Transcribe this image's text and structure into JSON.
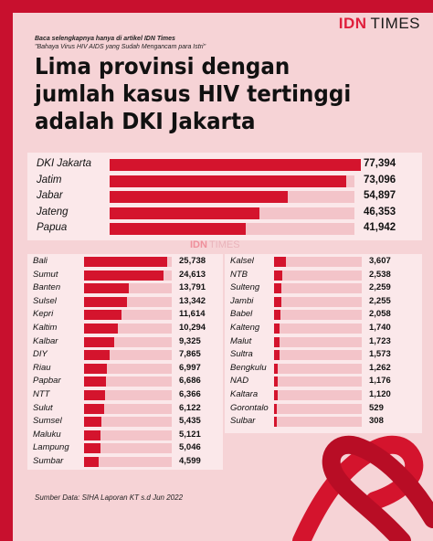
{
  "header": {
    "logo_main": "IDN",
    "logo_secondary": "TIMES",
    "note_line1": "Baca selengkapnya hanya di artikel IDN Times",
    "note_line2": "\"Bahaya Virus HIV AIDS yang Sudah Mengancam para Istri\"",
    "title_line1": "Lima provinsi dengan",
    "title_line2": "jumlah kasus HIV tertinggi",
    "title_line3": "adalah DKI Jakarta"
  },
  "watermark": {
    "main": "IDN",
    "secondary": "TIMES"
  },
  "footer": {
    "source": "Sumber Data: SIHA Laporan KT s.d Jun 2022"
  },
  "colors": {
    "bar": "#d4142d",
    "track": "#f3c4c9",
    "background": "#f6d3d6",
    "accent": "#c8102e"
  },
  "chart_data": [
    {
      "type": "bar",
      "orientation": "horizontal",
      "categories": [
        "DKI Jakarta",
        "Jatim",
        "Jabar",
        "Jateng",
        "Papua"
      ],
      "values": [
        77394,
        73096,
        54897,
        46353,
        41942
      ],
      "labels": [
        "77,394",
        "73,096",
        "54,897",
        "46,353",
        "41,942"
      ],
      "xlim": [
        0,
        93000
      ],
      "grid": false
    },
    {
      "type": "bar",
      "orientation": "horizontal",
      "categories": [
        "Bali",
        "Sumut",
        "Banten",
        "Sulsel",
        "Kepri",
        "Kaltim",
        "Kalbar",
        "DIY",
        "Riau",
        "Papbar",
        "NTT",
        "Sulut",
        "Sumsel",
        "Maluku",
        "Lampung",
        "Sumbar"
      ],
      "values": [
        25738,
        24613,
        13791,
        13342,
        11614,
        10294,
        9325,
        7865,
        6997,
        6686,
        6366,
        6122,
        5435,
        5121,
        5046,
        4599
      ],
      "labels": [
        "25,738",
        "24,613",
        "13,791",
        "13,342",
        "11,614",
        "10,294",
        "9,325",
        "7,865",
        "6,997",
        "6,686",
        "6,366",
        "6,122",
        "5,435",
        "5,121",
        "5,046",
        "4,599"
      ],
      "xlim": [
        0,
        93000
      ],
      "grid": false
    },
    {
      "type": "bar",
      "orientation": "horizontal",
      "categories": [
        "Kalsel",
        "NTB",
        "Sulteng",
        "Jambi",
        "Babel",
        "Kalteng",
        "Malut",
        "Sultra",
        "Bengkulu",
        "NAD",
        "Kaltara",
        "Gorontalo",
        "Sulbar"
      ],
      "values": [
        3607,
        2538,
        2259,
        2255,
        2058,
        1740,
        1723,
        1573,
        1262,
        1176,
        1120,
        529,
        308
      ],
      "labels": [
        "3,607",
        "2,538",
        "2,259",
        "2,255",
        "2,058",
        "1,740",
        "1,723",
        "1,573",
        "1,262",
        "1,176",
        "1,120",
        "529",
        "308"
      ],
      "xlim": [
        0,
        93000
      ],
      "grid": false
    }
  ]
}
